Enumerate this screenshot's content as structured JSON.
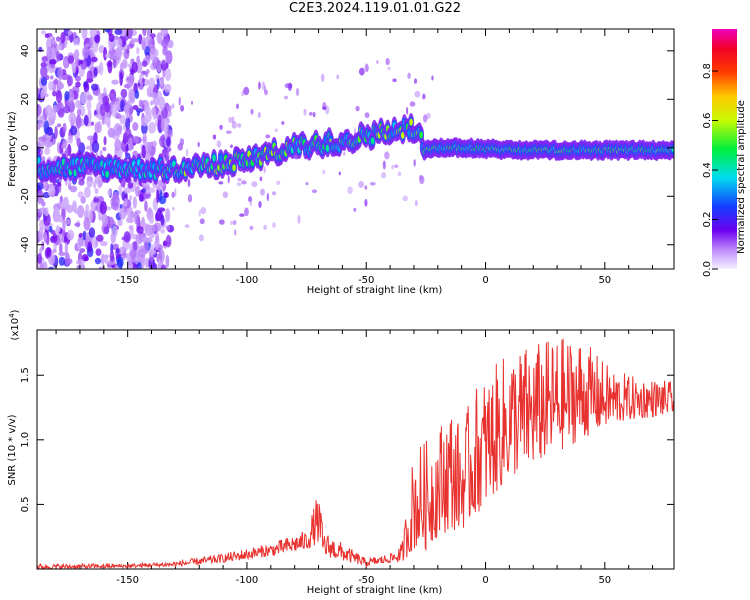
{
  "title": "C2E3.2024.119.01.01.G22",
  "chart_data": [
    {
      "type": "heatmap",
      "xlabel": "Height of straight line (km)",
      "ylabel": "Frequency (Hz)",
      "xlim": [
        -188,
        79
      ],
      "ylim": [
        -50,
        49
      ],
      "xticks": [
        -150,
        -100,
        -50,
        0,
        50
      ],
      "yticks": [
        -40,
        -20,
        0,
        20,
        40
      ],
      "colorbar": {
        "label": "Normalized spectral amplitude",
        "range": [
          0,
          0.97
        ],
        "ticks": [
          0.0,
          0.2,
          0.4,
          0.6,
          0.8
        ]
      },
      "ridge": {
        "description_points_x": [
          -188,
          -160,
          -135,
          -120,
          -100,
          -80,
          -60,
          -45,
          -30,
          -25,
          -10,
          0,
          20,
          40,
          60,
          79
        ],
        "description_points_y": [
          -8,
          -8,
          -9,
          -8,
          -5,
          0,
          3,
          6,
          8,
          0,
          0,
          -0.5,
          -1,
          -1,
          -1,
          -1
        ],
        "peak_amplitude": 0.97
      }
    },
    {
      "type": "line",
      "xlabel": "Height of straight line (km)",
      "ylabel": "SNR (10 * v/v)",
      "yscale_label": "(x10",
      "yscale_exponent": "4",
      "xlim": [
        -188,
        79
      ],
      "ylim": [
        0,
        1.85
      ],
      "xticks": [
        -150,
        -100,
        -50,
        0,
        50
      ],
      "yticks": [
        0.5,
        1.0,
        1.5
      ],
      "ytick_labels": [
        "0.5",
        "1.0",
        "1.5"
      ],
      "series": [
        {
          "color": "#e8322f",
          "envelope_x": [
            -188,
            -150,
            -130,
            -110,
            -90,
            -75,
            -70,
            -68,
            -50,
            -40,
            -35,
            -30,
            -25,
            -20,
            -15,
            -10,
            -5,
            0,
            5,
            10,
            20,
            30,
            40,
            50,
            60,
            79
          ],
          "envelope_lo": [
            0.0,
            0.01,
            0.02,
            0.05,
            0.1,
            0.15,
            0.2,
            0.1,
            0.02,
            0.05,
            0.05,
            0.15,
            0.15,
            0.25,
            0.3,
            0.3,
            0.4,
            0.5,
            0.6,
            0.7,
            0.8,
            0.9,
            1.0,
            1.1,
            1.15,
            1.2
          ],
          "envelope_hi": [
            0.04,
            0.04,
            0.06,
            0.12,
            0.2,
            0.3,
            0.6,
            0.3,
            0.08,
            0.12,
            0.2,
            0.95,
            1.0,
            1.1,
            1.3,
            1.1,
            1.4,
            1.5,
            1.6,
            1.7,
            1.75,
            1.8,
            1.8,
            1.6,
            1.5,
            1.45
          ]
        }
      ]
    }
  ]
}
